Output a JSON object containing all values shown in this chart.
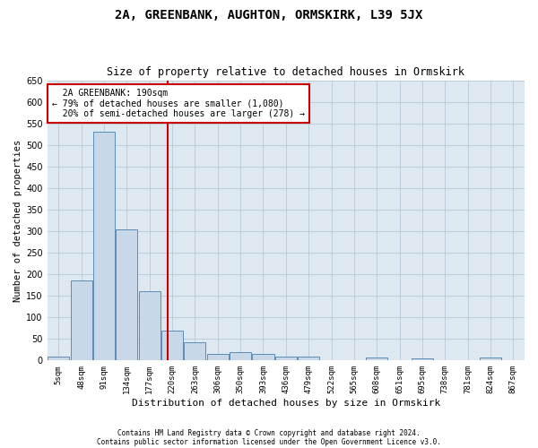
{
  "title": "2A, GREENBANK, AUGHTON, ORMSKIRK, L39 5JX",
  "subtitle": "Size of property relative to detached houses in Ormskirk",
  "xlabel": "Distribution of detached houses by size in Ormskirk",
  "ylabel": "Number of detached properties",
  "footer1": "Contains HM Land Registry data © Crown copyright and database right 2024.",
  "footer2": "Contains public sector information licensed under the Open Government Licence v3.0.",
  "categories": [
    "5sqm",
    "48sqm",
    "91sqm",
    "134sqm",
    "177sqm",
    "220sqm",
    "263sqm",
    "306sqm",
    "350sqm",
    "393sqm",
    "436sqm",
    "479sqm",
    "522sqm",
    "565sqm",
    "608sqm",
    "651sqm",
    "695sqm",
    "738sqm",
    "781sqm",
    "824sqm",
    "867sqm"
  ],
  "values": [
    10,
    185,
    530,
    305,
    160,
    70,
    42,
    15,
    20,
    15,
    10,
    8,
    0,
    0,
    7,
    0,
    5,
    0,
    0,
    6,
    0
  ],
  "bar_color": "#c8d8e8",
  "bar_edge_color": "#5b8db8",
  "grid_color": "#b8c8d8",
  "background_color": "#dde8f0",
  "red_line_x": 4.78,
  "annotation_text": "  2A GREENBANK: 190sqm\n← 79% of detached houses are smaller (1,080)\n  20% of semi-detached houses are larger (278) →",
  "annotation_box_color": "#ffffff",
  "annotation_box_edge": "#cc0000",
  "red_line_color": "#cc0000",
  "ylim": [
    0,
    650
  ],
  "yticks": [
    0,
    50,
    100,
    150,
    200,
    250,
    300,
    350,
    400,
    450,
    500,
    550,
    600,
    650
  ]
}
